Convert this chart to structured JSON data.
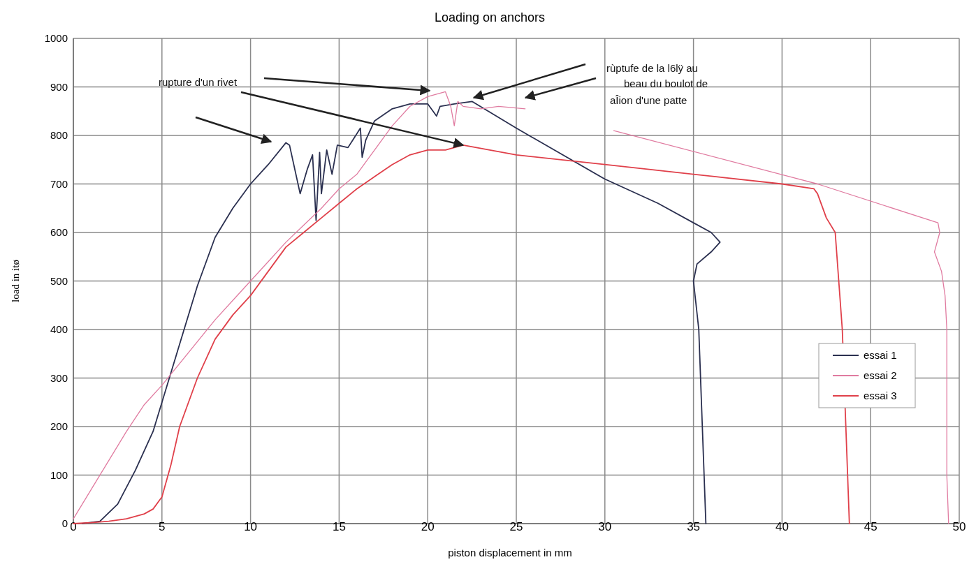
{
  "chart_data": {
    "type": "line",
    "title": "Loading on anchors",
    "xlabel": "piston displacement in mm",
    "ylabel": "load in itø",
    "xlim": [
      0,
      50
    ],
    "xticks": [
      0,
      5,
      10,
      15,
      20,
      25,
      30,
      35,
      40,
      45,
      50
    ],
    "ylim": [
      0,
      1000
    ],
    "yticks": [
      0,
      100,
      200,
      300,
      400,
      500,
      600,
      700,
      800,
      900,
      1000
    ],
    "grid": true,
    "legend": "right",
    "line_style": "solid",
    "marker": "none",
    "annotations": [
      {
        "text": "rupture d'un rivet",
        "x": 22,
        "y": 780
      },
      "rùptufe de la l6lÿ au",
      "beau du boulot de",
      "aÎion d'une patte"
    ],
    "series": [
      {
        "name": "essai 1",
        "color": "#2b3050",
        "x": [
          0.5,
          1.5,
          2.5,
          3.5,
          4.5,
          5,
          6,
          7,
          8,
          9,
          10,
          11,
          12,
          12.2,
          12.8,
          13.2,
          13.5,
          13.7,
          13.9,
          14,
          14.3,
          14.6,
          14.9,
          15.5,
          16.2,
          16.3,
          16.5,
          17,
          18,
          19,
          20,
          20.3,
          20.5,
          20.7,
          21.5,
          22.5,
          25,
          30,
          33,
          35,
          36,
          36.5,
          36,
          35.2,
          35,
          35.3,
          35.5,
          35.7
        ],
        "values": [
          0,
          5,
          40,
          110,
          190,
          250,
          370,
          490,
          590,
          650,
          700,
          740,
          785,
          780,
          680,
          730,
          760,
          625,
          765,
          680,
          770,
          720,
          780,
          775,
          815,
          755,
          790,
          830,
          855,
          865,
          865,
          850,
          840,
          860,
          865,
          870,
          815,
          710,
          660,
          620,
          600,
          580,
          560,
          535,
          500,
          400,
          200,
          0
        ]
      },
      {
        "name": "essai 2",
        "color": "#e07ba0",
        "x": [
          0,
          1,
          2,
          3,
          4,
          5,
          6,
          7,
          8,
          9,
          10,
          11,
          12,
          13,
          14,
          15,
          16,
          17,
          18,
          19,
          20,
          21,
          21.3,
          21.5,
          21.7,
          22,
          23,
          24,
          25.5,
          28,
          30.5,
          42,
          48.8,
          48.9,
          48.6,
          49,
          49.2,
          49.3,
          49.3,
          49.4
        ],
        "values": [
          10,
          70,
          130,
          190,
          245,
          285,
          330,
          375,
          420,
          460,
          500,
          540,
          580,
          615,
          650,
          690,
          720,
          770,
          820,
          860,
          880,
          890,
          860,
          820,
          870,
          860,
          855,
          860,
          855,
          null,
          810,
          700,
          620,
          600,
          560,
          520,
          470,
          400,
          100,
          0
        ]
      },
      {
        "name": "essai 3",
        "color": "#e0404a",
        "x": [
          0,
          1,
          2,
          3,
          4,
          4.5,
          5,
          5.5,
          6,
          7,
          8,
          9,
          10,
          11,
          12,
          13,
          14,
          15,
          16,
          17,
          18,
          19,
          20,
          21,
          22,
          25,
          30,
          35,
          40,
          41.8,
          42,
          42.5,
          43,
          43.2,
          43.4,
          43.6,
          43.8
        ],
        "values": [
          0,
          2,
          5,
          10,
          20,
          30,
          55,
          120,
          200,
          300,
          380,
          430,
          470,
          520,
          570,
          600,
          630,
          660,
          690,
          715,
          740,
          760,
          770,
          770,
          780,
          760,
          740,
          720,
          700,
          690,
          680,
          630,
          600,
          500,
          400,
          200,
          0
        ]
      }
    ]
  }
}
